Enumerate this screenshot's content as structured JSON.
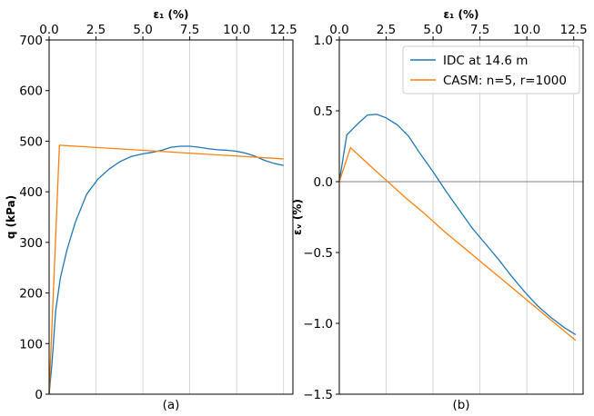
{
  "chart_data": [
    {
      "type": "line",
      "panel_label": "(a)",
      "xlabel": "ε₁ (%)",
      "ylabel": "q (kPa)",
      "xlim": [
        0,
        13
      ],
      "ylim": [
        0,
        700
      ],
      "xticks": [
        "0.0",
        "2.5",
        "5.0",
        "7.5",
        "10.0",
        "12.5"
      ],
      "xtick_values": [
        0,
        2.5,
        5,
        7.5,
        10,
        12.5
      ],
      "yticks": [
        "0",
        "100",
        "200",
        "300",
        "400",
        "500",
        "600",
        "700"
      ],
      "ytick_values": [
        0,
        100,
        200,
        300,
        400,
        500,
        600,
        700
      ],
      "x_axis_position": "top",
      "grid": "vertical",
      "series": [
        {
          "color": "#1f77b4",
          "x": [
            0,
            0.15,
            0.35,
            0.6,
            0.95,
            1.4,
            2.0,
            2.6,
            3.2,
            3.8,
            4.4,
            5.0,
            5.5,
            6.0,
            6.5,
            7.0,
            7.5,
            8.0,
            8.5,
            9.0,
            9.5,
            10.0,
            10.5,
            11.0,
            11.5,
            12.0,
            12.5
          ],
          "y": [
            0,
            60,
            165,
            230,
            285,
            340,
            395,
            425,
            445,
            460,
            470,
            475,
            478,
            482,
            488,
            490,
            490,
            488,
            485,
            483,
            482,
            480,
            476,
            470,
            462,
            456,
            452
          ]
        },
        {
          "color": "#ff7f0e",
          "x": [
            0,
            0.55,
            12.5
          ],
          "y": [
            0,
            492,
            465
          ]
        }
      ]
    },
    {
      "type": "line",
      "panel_label": "(b)",
      "xlabel": "ε₁ (%)",
      "ylabel": "εᵥ (%)",
      "xlim": [
        0,
        13
      ],
      "ylim": [
        -1.5,
        1.0
      ],
      "xticks": [
        "0.0",
        "2.5",
        "5.0",
        "7.5",
        "10.0",
        "12.5"
      ],
      "xtick_values": [
        0,
        2.5,
        5,
        7.5,
        10,
        12.5
      ],
      "yticks": [
        "−1.5",
        "−1.0",
        "−0.5",
        "0.0",
        "0.5",
        "1.0"
      ],
      "ytick_values": [
        -1.5,
        -1.0,
        -0.5,
        0,
        0.5,
        1.0
      ],
      "x_axis_position": "top",
      "grid": "vertical",
      "zero_line": true,
      "legend_position": "upper-right",
      "series": [
        {
          "name": "IDC at 14.6 m",
          "color": "#1f77b4",
          "x": [
            0,
            0.4,
            1.0,
            1.5,
            2.0,
            2.5,
            3.1,
            3.7,
            4.3,
            5.0,
            5.7,
            6.4,
            7.1,
            7.8,
            8.5,
            9.2,
            9.9,
            10.6,
            11.3,
            12.0,
            12.6
          ],
          "y": [
            0.0,
            0.33,
            0.41,
            0.47,
            0.475,
            0.45,
            0.4,
            0.32,
            0.2,
            0.07,
            -0.07,
            -0.2,
            -0.33,
            -0.44,
            -0.55,
            -0.67,
            -0.78,
            -0.88,
            -0.96,
            -1.03,
            -1.08
          ]
        },
        {
          "name": "CASM: n=5, r=1000",
          "color": "#ff7f0e",
          "x": [
            0,
            0.6,
            1.5,
            2.5,
            3.5,
            4.5,
            5.5,
            6.5,
            7.5,
            8.5,
            9.5,
            10.5,
            11.5,
            12.6
          ],
          "y": [
            0.0,
            0.24,
            0.13,
            0.01,
            -0.11,
            -0.22,
            -0.34,
            -0.45,
            -0.56,
            -0.67,
            -0.78,
            -0.89,
            -1.0,
            -1.12
          ]
        }
      ]
    }
  ]
}
